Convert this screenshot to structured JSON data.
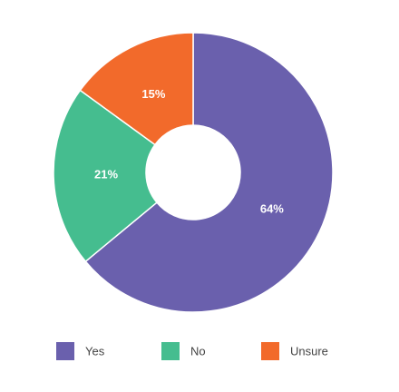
{
  "chart_data": {
    "type": "donut",
    "categories": [
      "Yes",
      "No",
      "Unsure"
    ],
    "values": [
      64,
      21,
      15
    ],
    "value_labels": [
      "64%",
      "21%",
      "15%"
    ],
    "colors": [
      "#6a60ad",
      "#45bd8f",
      "#f26a2b"
    ]
  }
}
